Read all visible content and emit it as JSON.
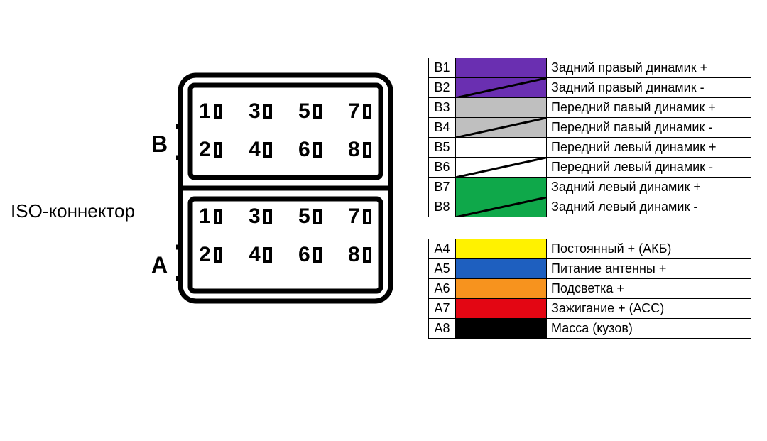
{
  "label_iso": "ISO-коннектор",
  "label_b": "B",
  "label_a": "A",
  "pin_numbers_row1": [
    "1",
    "3",
    "5",
    "7"
  ],
  "pin_numbers_row2": [
    "2",
    "4",
    "6",
    "8"
  ],
  "groupB": [
    {
      "code": "B1",
      "color": "#6a2fb1",
      "stripe": false,
      "desc": "Задний правый динамик +"
    },
    {
      "code": "B2",
      "color": "#6a2fb1",
      "stripe": true,
      "desc": "Задний правый динамик -"
    },
    {
      "code": "B3",
      "color": "#bfbfbf",
      "stripe": false,
      "desc": "Передний павый динамик +"
    },
    {
      "code": "B4",
      "color": "#bfbfbf",
      "stripe": true,
      "desc": "Передний павый динамик -"
    },
    {
      "code": "B5",
      "color": "#ffffff",
      "stripe": false,
      "desc": "Передний левый динамик +"
    },
    {
      "code": "B6",
      "color": "#ffffff",
      "stripe": true,
      "desc": "Передний левый динамик -"
    },
    {
      "code": "B7",
      "color": "#0fa84a",
      "stripe": false,
      "desc": "Задний левый динамик +"
    },
    {
      "code": "B8",
      "color": "#0fa84a",
      "stripe": true,
      "desc": "Задний левый динамик -"
    }
  ],
  "groupA": [
    {
      "code": "A4",
      "color": "#fff200",
      "stripe": false,
      "desc": "Постоянный + (АКБ)"
    },
    {
      "code": "A5",
      "color": "#1e5fbf",
      "stripe": false,
      "desc": "Питание антенны +"
    },
    {
      "code": "A6",
      "color": "#f7931e",
      "stripe": false,
      "desc": "Подсветка +"
    },
    {
      "code": "A7",
      "color": "#e30613",
      "stripe": false,
      "desc": "Зажигание + (АСС)"
    },
    {
      "code": "A8",
      "color": "#000000",
      "stripe": false,
      "desc": "Масса (кузов)"
    }
  ],
  "style": {
    "stroke": "#000000",
    "stroke_width": 7,
    "stripe_color": "#000000"
  }
}
